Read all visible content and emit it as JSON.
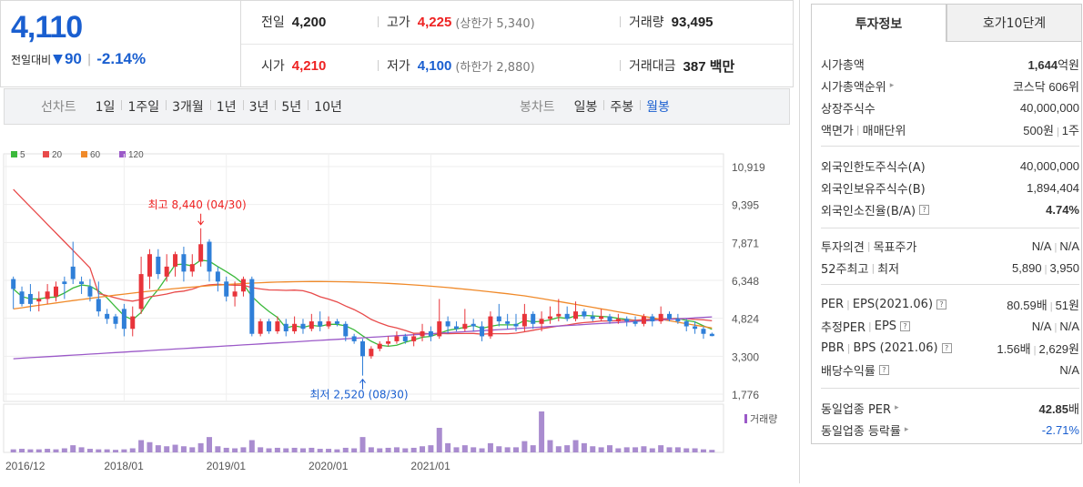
{
  "price": {
    "current": "4,110",
    "diff_label": "전일대비",
    "diff_arrow": "▼",
    "diff_value": "90",
    "diff_pct": "-2.14%"
  },
  "info": {
    "prev_label": "전일",
    "prev": "4,200",
    "high_label": "고가",
    "high": "4,225",
    "high_sub": "(상한가 5,340)",
    "volume_label": "거래량",
    "volume": "93,495",
    "open_label": "시가",
    "open": "4,210",
    "low_label": "저가",
    "low": "4,100",
    "low_sub": "(하한가 2,880)",
    "amount_label": "거래대금",
    "amount": "387 백만"
  },
  "toolbar": {
    "line_label": "선차트",
    "line_items": [
      "1일",
      "1주일",
      "3개월",
      "1년",
      "3년",
      "5년",
      "10년"
    ],
    "candle_label": "봉차트",
    "candle_items": [
      "일봉",
      "주봉",
      "월봉"
    ],
    "active_candle": "월봉"
  },
  "tabs": [
    "투자정보",
    "호가10단계"
  ],
  "invest": {
    "market_cap_label": "시가총액",
    "market_cap_num": "1,644",
    "market_cap_unit": "억원",
    "rank_label": "시가총액순위",
    "rank": "코스닥 606위",
    "shares_label": "상장주식수",
    "shares": "40,000,000",
    "par_label": "액면가",
    "par_label2": "매매단위",
    "par": "500원",
    "unit": "1주",
    "foreign_limit_label": "외국인한도주식수(A)",
    "foreign_limit": "40,000,000",
    "foreign_hold_label": "외국인보유주식수(B)",
    "foreign_hold": "1,894,404",
    "foreign_ratio_label": "외국인소진율(B/A)",
    "foreign_ratio": "4.74%",
    "opinion_label": "투자의견",
    "target_label": "목표주가",
    "opinion": "N/A",
    "target": "N/A",
    "w52_label": "52주최고",
    "w52_low_label": "최저",
    "w52_high": "5,890",
    "w52_low": "3,950",
    "per_label": "PER",
    "eps_label": "EPS(2021.06)",
    "per": "80.59배",
    "eps": "51원",
    "est_per_label": "추정PER",
    "est_eps_label": "EPS",
    "est_per": "N/A",
    "est_eps": "N/A",
    "pbr_label": "PBR",
    "bps_label": "BPS (2021.06)",
    "pbr": "1.56배",
    "bps": "2,629원",
    "div_label": "배당수익률",
    "div": "N/A",
    "ind_per_label": "동일업종 PER",
    "ind_per_num": "42.85",
    "ind_per_unit": "배",
    "ind_rate_label": "동일업종 등락률",
    "ind_rate": "-2.71%"
  },
  "chart_data": {
    "type": "candlestick",
    "legend": [
      {
        "name": "5",
        "color": "#3bb93b"
      },
      {
        "name": "20",
        "color": "#e84a4a"
      },
      {
        "name": "60",
        "color": "#f08a2a"
      },
      {
        "name": "120",
        "color": "#9b59c8"
      }
    ],
    "y_ticks": [
      "10,919",
      "9,395",
      "7,871",
      "6,348",
      "4,824",
      "3,300",
      "1,776"
    ],
    "ylim": [
      1776,
      10919
    ],
    "x_ticks": [
      "2016/12",
      "2018/01",
      "2019/01",
      "2020/01",
      "2021/01"
    ],
    "annotations": [
      {
        "text": "최고 8,440 (04/30)",
        "color": "#e22"
      },
      {
        "text": "최저 2,520 (08/30)",
        "color": "#1a5fd0"
      }
    ],
    "volume_label": "거래량",
    "candles": [
      [
        6400,
        6000,
        6500,
        5200
      ],
      [
        5900,
        5400,
        6100,
        5300
      ],
      [
        5800,
        5400,
        6200,
        5100
      ],
      [
        5500,
        5600,
        5900,
        5100
      ],
      [
        5600,
        5900,
        6200,
        5400
      ],
      [
        5700,
        6100,
        6300,
        5500
      ],
      [
        6300,
        6200,
        6500,
        5600
      ],
      [
        6900,
        6400,
        7900,
        6200
      ],
      [
        6300,
        6200,
        6500,
        5800
      ],
      [
        6100,
        5700,
        6400,
        5500
      ],
      [
        5600,
        5100,
        6300,
        4900
      ],
      [
        5000,
        4800,
        5200,
        4600
      ],
      [
        4900,
        4600,
        5000,
        4400
      ],
      [
        5200,
        4400,
        5400,
        4100
      ],
      [
        4400,
        4900,
        5300,
        4100
      ],
      [
        5200,
        6600,
        7300,
        5000
      ],
      [
        6500,
        7400,
        7600,
        6000
      ],
      [
        7300,
        6600,
        7600,
        6400
      ],
      [
        6500,
        6900,
        7400,
        6300
      ],
      [
        6900,
        7400,
        7500,
        6500
      ],
      [
        7400,
        6700,
        7700,
        6300
      ],
      [
        6700,
        7000,
        7400,
        6500
      ],
      [
        7100,
        7800,
        8440,
        6900
      ],
      [
        7900,
        6700,
        8000,
        6300
      ],
      [
        6700,
        6300,
        6900,
        5900
      ],
      [
        6300,
        5700,
        6500,
        5500
      ],
      [
        5700,
        5900,
        6300,
        5300
      ],
      [
        5900,
        6400,
        6500,
        5700
      ],
      [
        6400,
        4200,
        6500,
        4100
      ],
      [
        4200,
        4700,
        4800,
        4100
      ],
      [
        4700,
        4300,
        4800,
        4200
      ],
      [
        4300,
        4700,
        4900,
        4200
      ],
      [
        4600,
        4300,
        4800,
        4100
      ],
      [
        4300,
        4600,
        4900,
        4200
      ],
      [
        4600,
        4400,
        4800,
        4200
      ],
      [
        4400,
        4700,
        5000,
        4300
      ],
      [
        4700,
        4500,
        5100,
        4300
      ],
      [
        4500,
        4700,
        4900,
        4400
      ],
      [
        4700,
        4600,
        4800,
        4500
      ],
      [
        4600,
        4100,
        4700,
        3900
      ],
      [
        4100,
        3900,
        4200,
        3800
      ],
      [
        3900,
        3300,
        4000,
        2520
      ],
      [
        3300,
        3600,
        3700,
        3200
      ],
      [
        3600,
        3800,
        3900,
        3500
      ],
      [
        3800,
        3900,
        4100,
        3700
      ],
      [
        3900,
        4100,
        4300,
        3800
      ],
      [
        4100,
        3900,
        4200,
        3800
      ],
      [
        3900,
        4100,
        4200,
        3700
      ],
      [
        4100,
        4300,
        4600,
        3900
      ],
      [
        4300,
        4100,
        4500,
        3900
      ],
      [
        4100,
        4700,
        5600,
        4000
      ],
      [
        4700,
        4500,
        4900,
        4200
      ],
      [
        4500,
        4400,
        4700,
        4300
      ],
      [
        4400,
        4600,
        5200,
        4300
      ],
      [
        4600,
        4500,
        4800,
        4300
      ],
      [
        4500,
        4100,
        4700,
        3900
      ],
      [
        4100,
        4900,
        5100,
        4000
      ],
      [
        4900,
        4700,
        5400,
        4500
      ],
      [
        4700,
        4600,
        5000,
        4400
      ],
      [
        4600,
        4500,
        5000,
        4300
      ],
      [
        4500,
        5000,
        5400,
        4300
      ],
      [
        5000,
        4600,
        5100,
        4400
      ],
      [
        4600,
        4800,
        5100,
        4300
      ],
      [
        4800,
        4900,
        5300,
        4600
      ],
      [
        4900,
        5000,
        5600,
        4700
      ],
      [
        5000,
        4800,
        5300,
        4700
      ],
      [
        4800,
        5100,
        5500,
        4700
      ],
      [
        5100,
        4900,
        5200,
        4800
      ],
      [
        4900,
        4800,
        5100,
        4700
      ],
      [
        4800,
        4900,
        5200,
        4700
      ],
      [
        4900,
        4700,
        5000,
        4600
      ],
      [
        4700,
        4800,
        5000,
        4600
      ],
      [
        4800,
        4700,
        4900,
        4500
      ],
      [
        4700,
        4600,
        4900,
        4500
      ],
      [
        4600,
        4900,
        5000,
        4500
      ],
      [
        4900,
        4700,
        5000,
        4500
      ],
      [
        4700,
        5000,
        5300,
        4600
      ],
      [
        5000,
        4800,
        5100,
        4700
      ],
      [
        4800,
        4700,
        5000,
        4600
      ],
      [
        4700,
        4500,
        4800,
        4300
      ],
      [
        4500,
        4400,
        4700,
        4200
      ],
      [
        4400,
        4200,
        4500,
        4000
      ],
      [
        4200,
        4110,
        4250,
        4100
      ]
    ],
    "volumes": [
      6,
      7,
      6,
      6,
      7,
      6,
      8,
      14,
      10,
      7,
      6,
      6,
      5,
      6,
      8,
      24,
      20,
      14,
      12,
      15,
      12,
      10,
      18,
      30,
      12,
      9,
      8,
      10,
      24,
      10,
      8,
      9,
      8,
      9,
      8,
      9,
      7,
      7,
      6,
      9,
      8,
      30,
      10,
      8,
      9,
      10,
      8,
      9,
      12,
      14,
      48,
      18,
      10,
      14,
      10,
      8,
      18,
      12,
      10,
      10,
      22,
      14,
      80,
      24,
      12,
      14,
      24,
      18,
      12,
      10,
      14,
      8,
      10,
      10,
      12,
      8,
      14,
      10,
      10,
      8,
      8,
      6,
      5
    ]
  }
}
